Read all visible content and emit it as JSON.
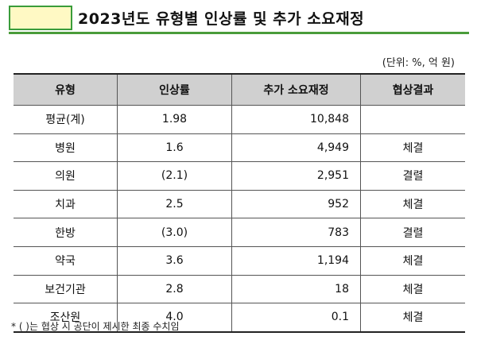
{
  "title": "2023년도 유형별 인상률 및 추가 소요재정",
  "unit_note": "(단위: %, 억 원)",
  "table": {
    "headers": [
      "유형",
      "인상률",
      "추가 소요재정",
      "협상결과"
    ],
    "rows": [
      [
        "평균(계)",
        "1.98",
        "10,848",
        ""
      ],
      [
        "병원",
        "1.6",
        "4,949",
        "체결"
      ],
      [
        "의원",
        "(2.1)",
        "2,951",
        "결렬"
      ],
      [
        "치과",
        "2.5",
        "952",
        "체결"
      ],
      [
        "한방",
        "(3.0)",
        "783",
        "결렬"
      ],
      [
        "약국",
        "3.6",
        "1,194",
        "체결"
      ],
      [
        "보건기관",
        "2.8",
        "18",
        "체결"
      ],
      [
        "조산원",
        "4.0",
        "0.1",
        "체결"
      ]
    ]
  },
  "footnote": "* (   )는 협상 시 공단이 제시한 최종 수치임",
  "colors": {
    "header_bg": "#d0d0d0",
    "title_box_fill": "#fff9c4",
    "accent_green": "#4a9c3a"
  }
}
